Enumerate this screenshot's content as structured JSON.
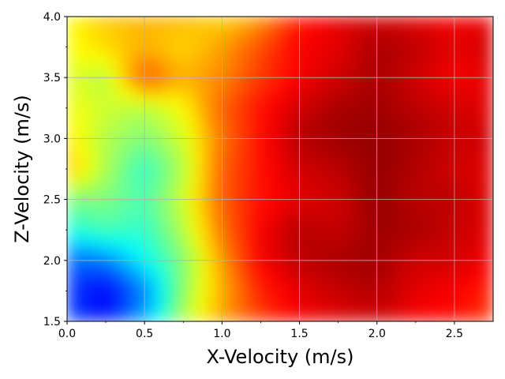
{
  "chart_data": {
    "type": "heatmap",
    "title": "",
    "xlabel": "X-Velocity (m/s)",
    "ylabel": "Z-Velocity (m/s)",
    "xlim": [
      0.0,
      2.75
    ],
    "ylim": [
      1.5,
      4.0
    ],
    "x_ticks": [
      0.0,
      0.5,
      1.0,
      1.5,
      2.0,
      2.5
    ],
    "x_tick_labels": [
      "0.0",
      "0.5",
      "1.0",
      "1.5",
      "2.0",
      "2.5"
    ],
    "y_ticks": [
      1.5,
      2.0,
      2.5,
      3.0,
      3.5,
      4.0
    ],
    "y_tick_labels": [
      "1.5",
      "2.0",
      "2.5",
      "3.0",
      "3.5",
      "4.0"
    ],
    "grid": true,
    "colormap": "jet",
    "x": [
      0.0,
      0.25,
      0.5,
      0.75,
      1.0,
      1.25,
      1.5,
      1.75,
      2.0,
      2.25,
      2.5,
      2.75
    ],
    "y": [
      1.5,
      1.75,
      2.0,
      2.25,
      2.5,
      2.75,
      3.0,
      3.25,
      3.5,
      3.75,
      4.0
    ],
    "z_range": [
      0.0,
      1.0
    ],
    "z": [
      [
        0.2,
        0.14,
        0.3,
        0.55,
        0.72,
        0.82,
        0.88,
        0.9,
        0.92,
        0.88,
        0.86,
        0.82
      ],
      [
        0.18,
        0.12,
        0.25,
        0.52,
        0.7,
        0.84,
        0.9,
        0.93,
        0.95,
        0.9,
        0.88,
        0.84
      ],
      [
        0.22,
        0.25,
        0.38,
        0.5,
        0.72,
        0.88,
        0.94,
        0.96,
        0.97,
        0.92,
        0.92,
        0.88
      ],
      [
        0.4,
        0.45,
        0.42,
        0.55,
        0.76,
        0.88,
        0.95,
        0.93,
        0.97,
        0.96,
        0.93,
        0.9
      ],
      [
        0.5,
        0.5,
        0.45,
        0.58,
        0.78,
        0.86,
        0.9,
        0.92,
        0.98,
        0.94,
        0.94,
        0.9
      ],
      [
        0.7,
        0.55,
        0.42,
        0.55,
        0.78,
        0.86,
        0.92,
        0.94,
        0.98,
        0.95,
        0.92,
        0.9
      ],
      [
        0.65,
        0.55,
        0.5,
        0.58,
        0.76,
        0.86,
        0.95,
        0.97,
        0.98,
        0.96,
        0.93,
        0.92
      ],
      [
        0.62,
        0.58,
        0.55,
        0.62,
        0.78,
        0.86,
        0.92,
        0.96,
        0.97,
        0.94,
        0.92,
        0.9
      ],
      [
        0.6,
        0.55,
        0.8,
        0.7,
        0.74,
        0.82,
        0.88,
        0.92,
        0.96,
        0.92,
        0.88,
        0.9
      ],
      [
        0.62,
        0.66,
        0.7,
        0.66,
        0.72,
        0.8,
        0.88,
        0.9,
        0.96,
        0.94,
        0.9,
        0.92
      ],
      [
        0.62,
        0.68,
        0.7,
        0.7,
        0.66,
        0.72,
        0.85,
        0.9,
        0.92,
        0.9,
        0.88,
        0.9
      ]
    ]
  }
}
